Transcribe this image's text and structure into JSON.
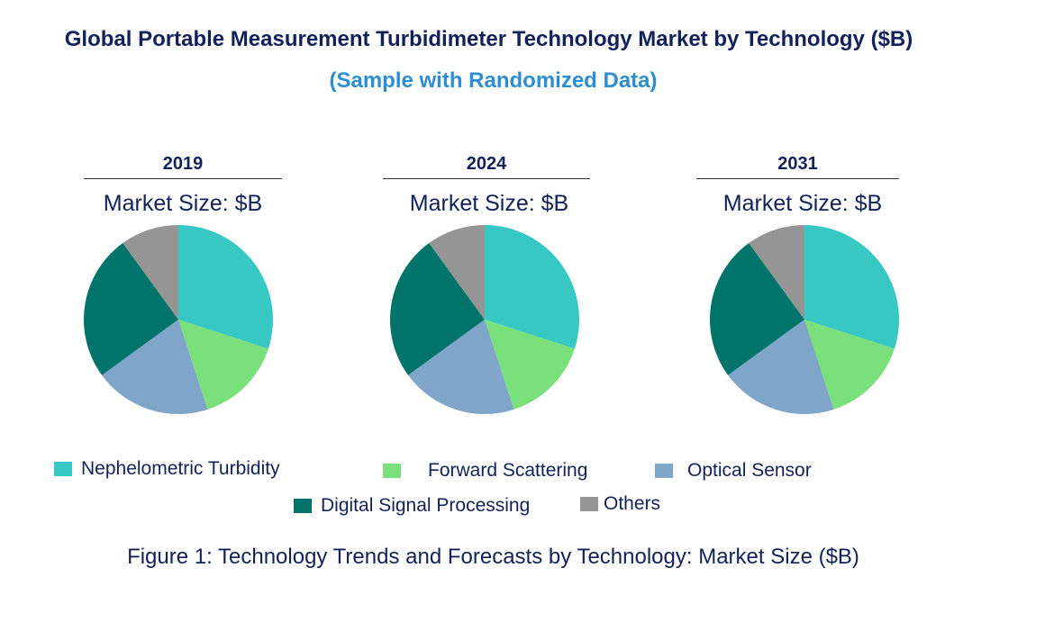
{
  "chart_data": {
    "type": "pie",
    "title": "Global Portable Measurement Turbidimeter Technology Market by Technology ($B)",
    "subtitle": "(Sample with Randomized Data)",
    "caption": "Figure 1: Technology Trends and Forecasts by Technology: Market Size ($B)",
    "categories": [
      "Nephelometric Turbidity",
      "Forward Scattering",
      "Optical Sensor",
      "Digital Signal Processing",
      "Others"
    ],
    "colors": [
      "#38c8c4",
      "#7ae07c",
      "#7fa5c9",
      "#00736a",
      "#959595"
    ],
    "legend_position": "bottom",
    "pies": [
      {
        "year": "2019",
        "label": "Market Size: $B",
        "values": [
          30,
          15,
          20,
          25,
          10
        ]
      },
      {
        "year": "2024",
        "label": "Market Size: $B",
        "values": [
          30,
          15,
          20,
          25,
          10
        ]
      },
      {
        "year": "2031",
        "label": "Market Size: $B",
        "values": [
          30,
          15,
          20,
          25,
          10
        ]
      }
    ]
  }
}
